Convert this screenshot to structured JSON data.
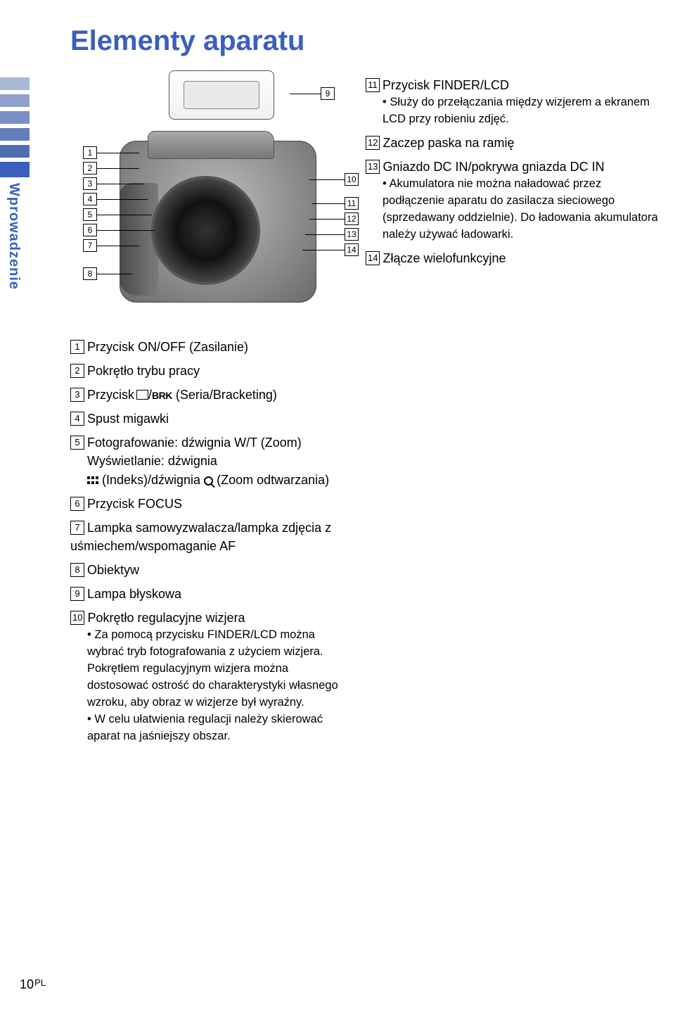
{
  "title": "Elementy aparatu",
  "side_tab_label": "Wprowadzenie",
  "tab_colors": [
    "#aab8d8",
    "#8fa1cc",
    "#7a8fc5",
    "#617dba",
    "#506fb2",
    "#3b5fbf"
  ],
  "callouts": {
    "c1": "1",
    "c2": "2",
    "c3": "3",
    "c4": "4",
    "c5": "5",
    "c6": "6",
    "c7": "7",
    "c8": "8",
    "c9": "9",
    "c10": "10",
    "c11": "11",
    "c12": "12",
    "c13": "13",
    "c14": "14"
  },
  "left_items": {
    "i1": "Przycisk ON/OFF (Zasilanie)",
    "i2": "Pokrętło trybu pracy",
    "i3_prefix": "Przycisk ",
    "i3_brk": "BRK",
    "i3_suffix": " (Seria/Bracketing)",
    "i4": "Spust migawki",
    "i5_line1": "Fotografowanie: dźwignia W/T (Zoom)",
    "i5_line2": "Wyświetlanie: dźwignia",
    "i5_line3a": " (Indeks)/dźwignia ",
    "i5_line3b": " (Zoom odtwarzania)",
    "i6": "Przycisk FOCUS",
    "i7": "Lampka samowyzwalacza/lampka zdjęcia z uśmiechem/wspomaganie AF",
    "i8": "Obiektyw",
    "i9": "Lampa błyskowa",
    "i10": "Pokrętło regulacyjne wizjera",
    "i10_sub1": "Za pomocą przycisku FINDER/LCD można wybrać tryb fotografowania z użyciem wizjera. Pokrętłem regulacyjnym wizjera można dostosować ostrość do charakterystyki własnego wzroku, aby obraz w wizjerze był wyraźny.",
    "i10_sub2": "W celu ułatwienia regulacji należy skierować aparat na jaśniejszy obszar."
  },
  "right_items": {
    "i11": "Przycisk FINDER/LCD",
    "i11_sub": "Służy do przełączania między wizjerem a ekranem LCD przy robieniu zdjęć.",
    "i12": "Zaczep paska na ramię",
    "i13": "Gniazdo DC IN/pokrywa gniazda DC IN",
    "i13_sub": "Akumulatora nie można naładować przez podłączenie aparatu do zasilacza sieciowego (sprzedawany oddzielnie). Do ładowania akumulatora należy używać ładowarki.",
    "i14": "Złącze wielofunkcyjne"
  },
  "page_number": "10",
  "page_region": "PL"
}
